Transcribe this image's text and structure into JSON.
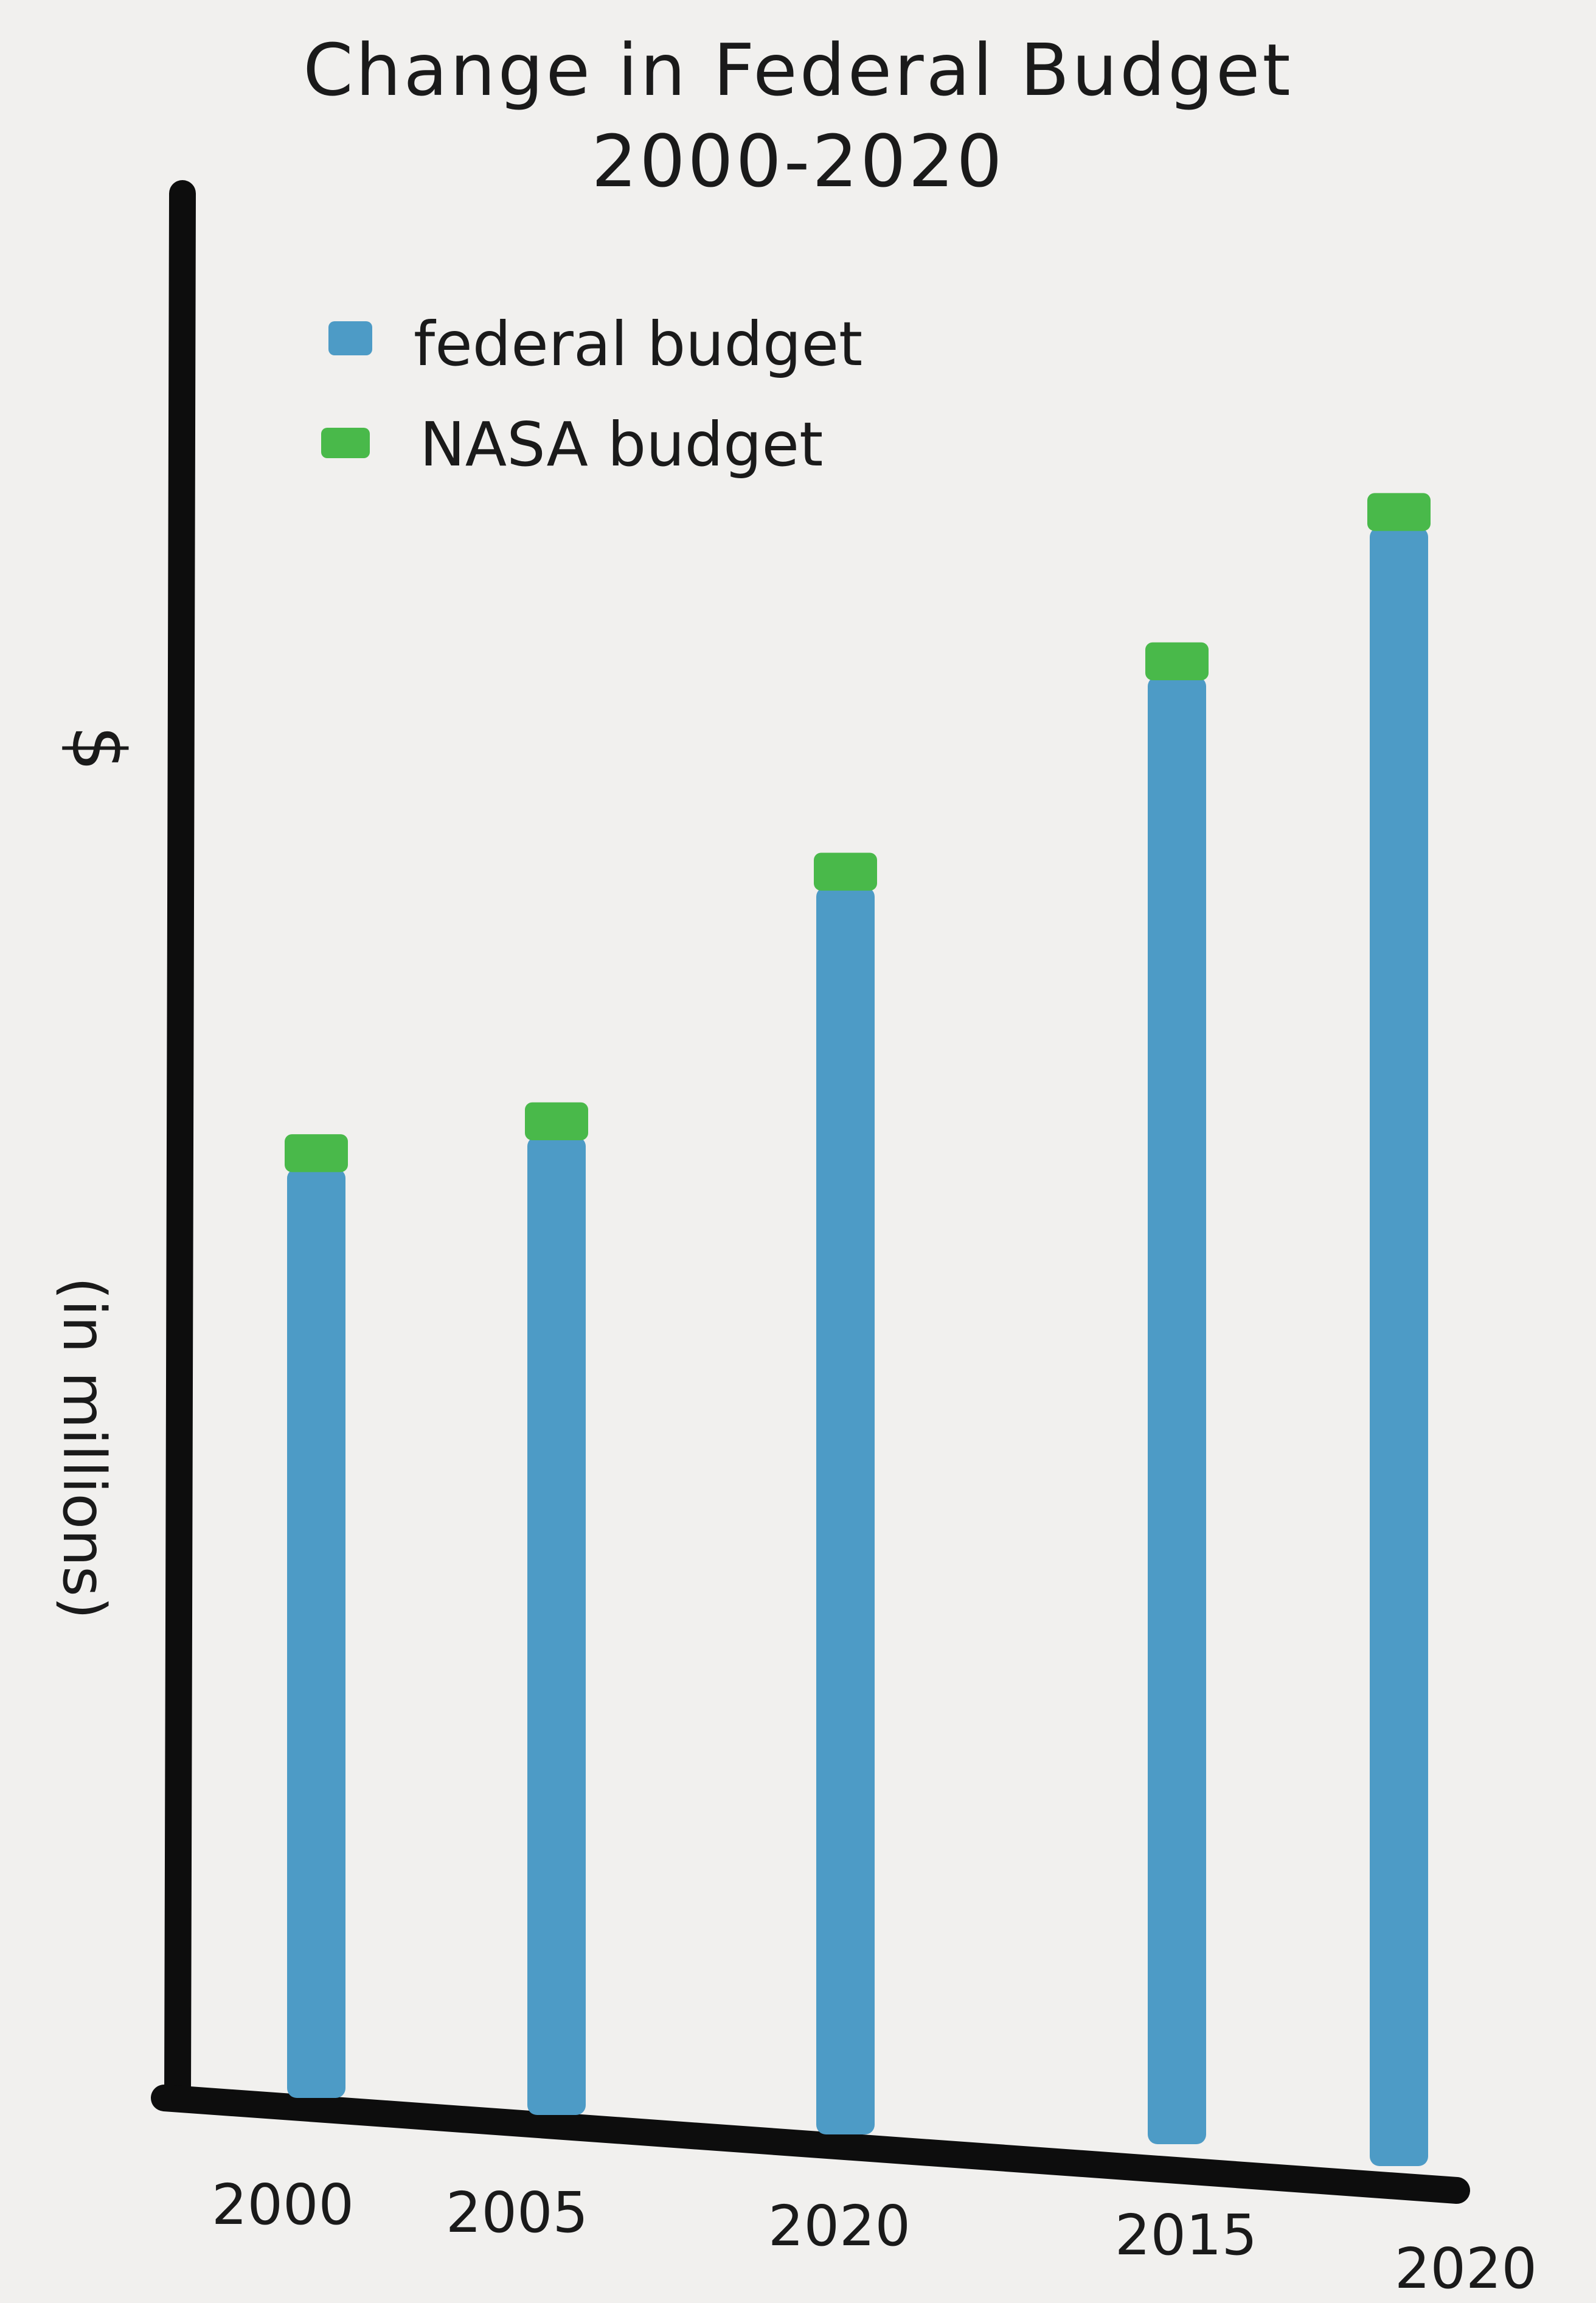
{
  "chart_data": {
    "type": "bar",
    "title": "Change in Federal Budget",
    "subtitle": "2000-2020",
    "ylabel_symbol": "$",
    "ylabel": "(in millions)",
    "xlabel": "",
    "categories": [
      "2000",
      "2005",
      "2020",
      "2015",
      "2020"
    ],
    "series": [
      {
        "name": "federal budget",
        "values": [
          38,
          40,
          51,
          60,
          67
        ]
      },
      {
        "name": "NASA budget",
        "values": [
          1.4,
          1.4,
          1.4,
          1.4,
          1.4
        ]
      }
    ],
    "stacked": true,
    "ylim": [
      0,
      84
    ],
    "grid": false,
    "legend_position": "top-left",
    "colors": {
      "federal budget": "#4d9bc6",
      "NASA budget": "#49b94a",
      "axis": "#0d0d0d"
    }
  }
}
